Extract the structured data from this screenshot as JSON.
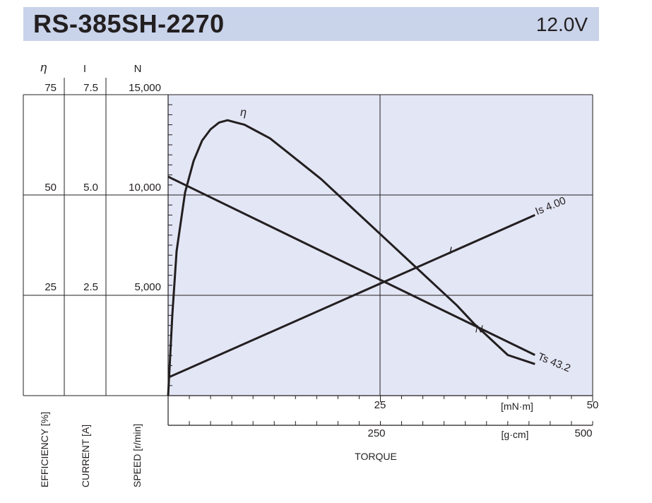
{
  "header": {
    "model": "RS-385SH-2270",
    "voltage": "12.0V"
  },
  "colors": {
    "header_bg": "#c9d3ea",
    "plot_bg": "#e3e6f5",
    "line": "#231f20"
  },
  "chart_data": {
    "type": "line",
    "title": "RS-385SH-2270 12.0V",
    "xlabel": "TORQUE",
    "x_units_primary": "[mN·m]",
    "x_units_secondary": "[g·cm]",
    "xlim_mNm": [
      0,
      50
    ],
    "xlim_gcm": [
      0,
      500
    ],
    "x_ticks_mNm": [
      "25",
      "50"
    ],
    "x_ticks_gcm": [
      "250",
      "500"
    ],
    "y_axes": [
      {
        "symbol": "η",
        "label": "EFFICIENCY [%]",
        "range": [
          0,
          100
        ],
        "ticks": [
          "75",
          "50",
          "25"
        ]
      },
      {
        "symbol": "I",
        "label": "CURRENT [A]",
        "range": [
          0,
          10
        ],
        "ticks": [
          "7.5",
          "5.0",
          "2.5"
        ]
      },
      {
        "symbol": "N",
        "label": "SPEED [r/min]",
        "range": [
          0,
          20000
        ],
        "ticks": [
          "15,000",
          "10,000",
          "5,000"
        ]
      }
    ],
    "series": [
      {
        "name": "N",
        "label": "N",
        "unit": "r/min",
        "x_mNm": [
          0,
          43.2
        ],
        "y": [
          9700,
          1800
        ]
      },
      {
        "name": "I",
        "label": "I",
        "unit": "A",
        "x_mNm": [
          0,
          43.2
        ],
        "y": [
          0.4,
          4.0
        ]
      },
      {
        "name": "η",
        "label": "η",
        "unit": "%",
        "x_mNm": [
          0,
          0.5,
          1,
          2,
          3,
          4,
          5,
          6,
          7,
          8,
          9,
          10,
          12,
          14,
          16,
          18,
          20,
          22,
          24,
          26,
          28,
          30,
          32,
          34,
          36,
          38,
          40,
          43.2
        ],
        "y": [
          0,
          18,
          32,
          45,
          52,
          56.5,
          59,
          60.5,
          61,
          60.5,
          60,
          59,
          57,
          54,
          51,
          48,
          44.5,
          41,
          37.5,
          34,
          30.5,
          27,
          23.5,
          20,
          16,
          12.5,
          9,
          7
        ]
      }
    ],
    "annotations": [
      {
        "text": "Is 4.00",
        "x_mNm": 43.2,
        "y_current": 4.0
      },
      {
        "text": "Ts 43.2",
        "x_mNm": 43.2,
        "y_speed": 1800
      }
    ]
  }
}
